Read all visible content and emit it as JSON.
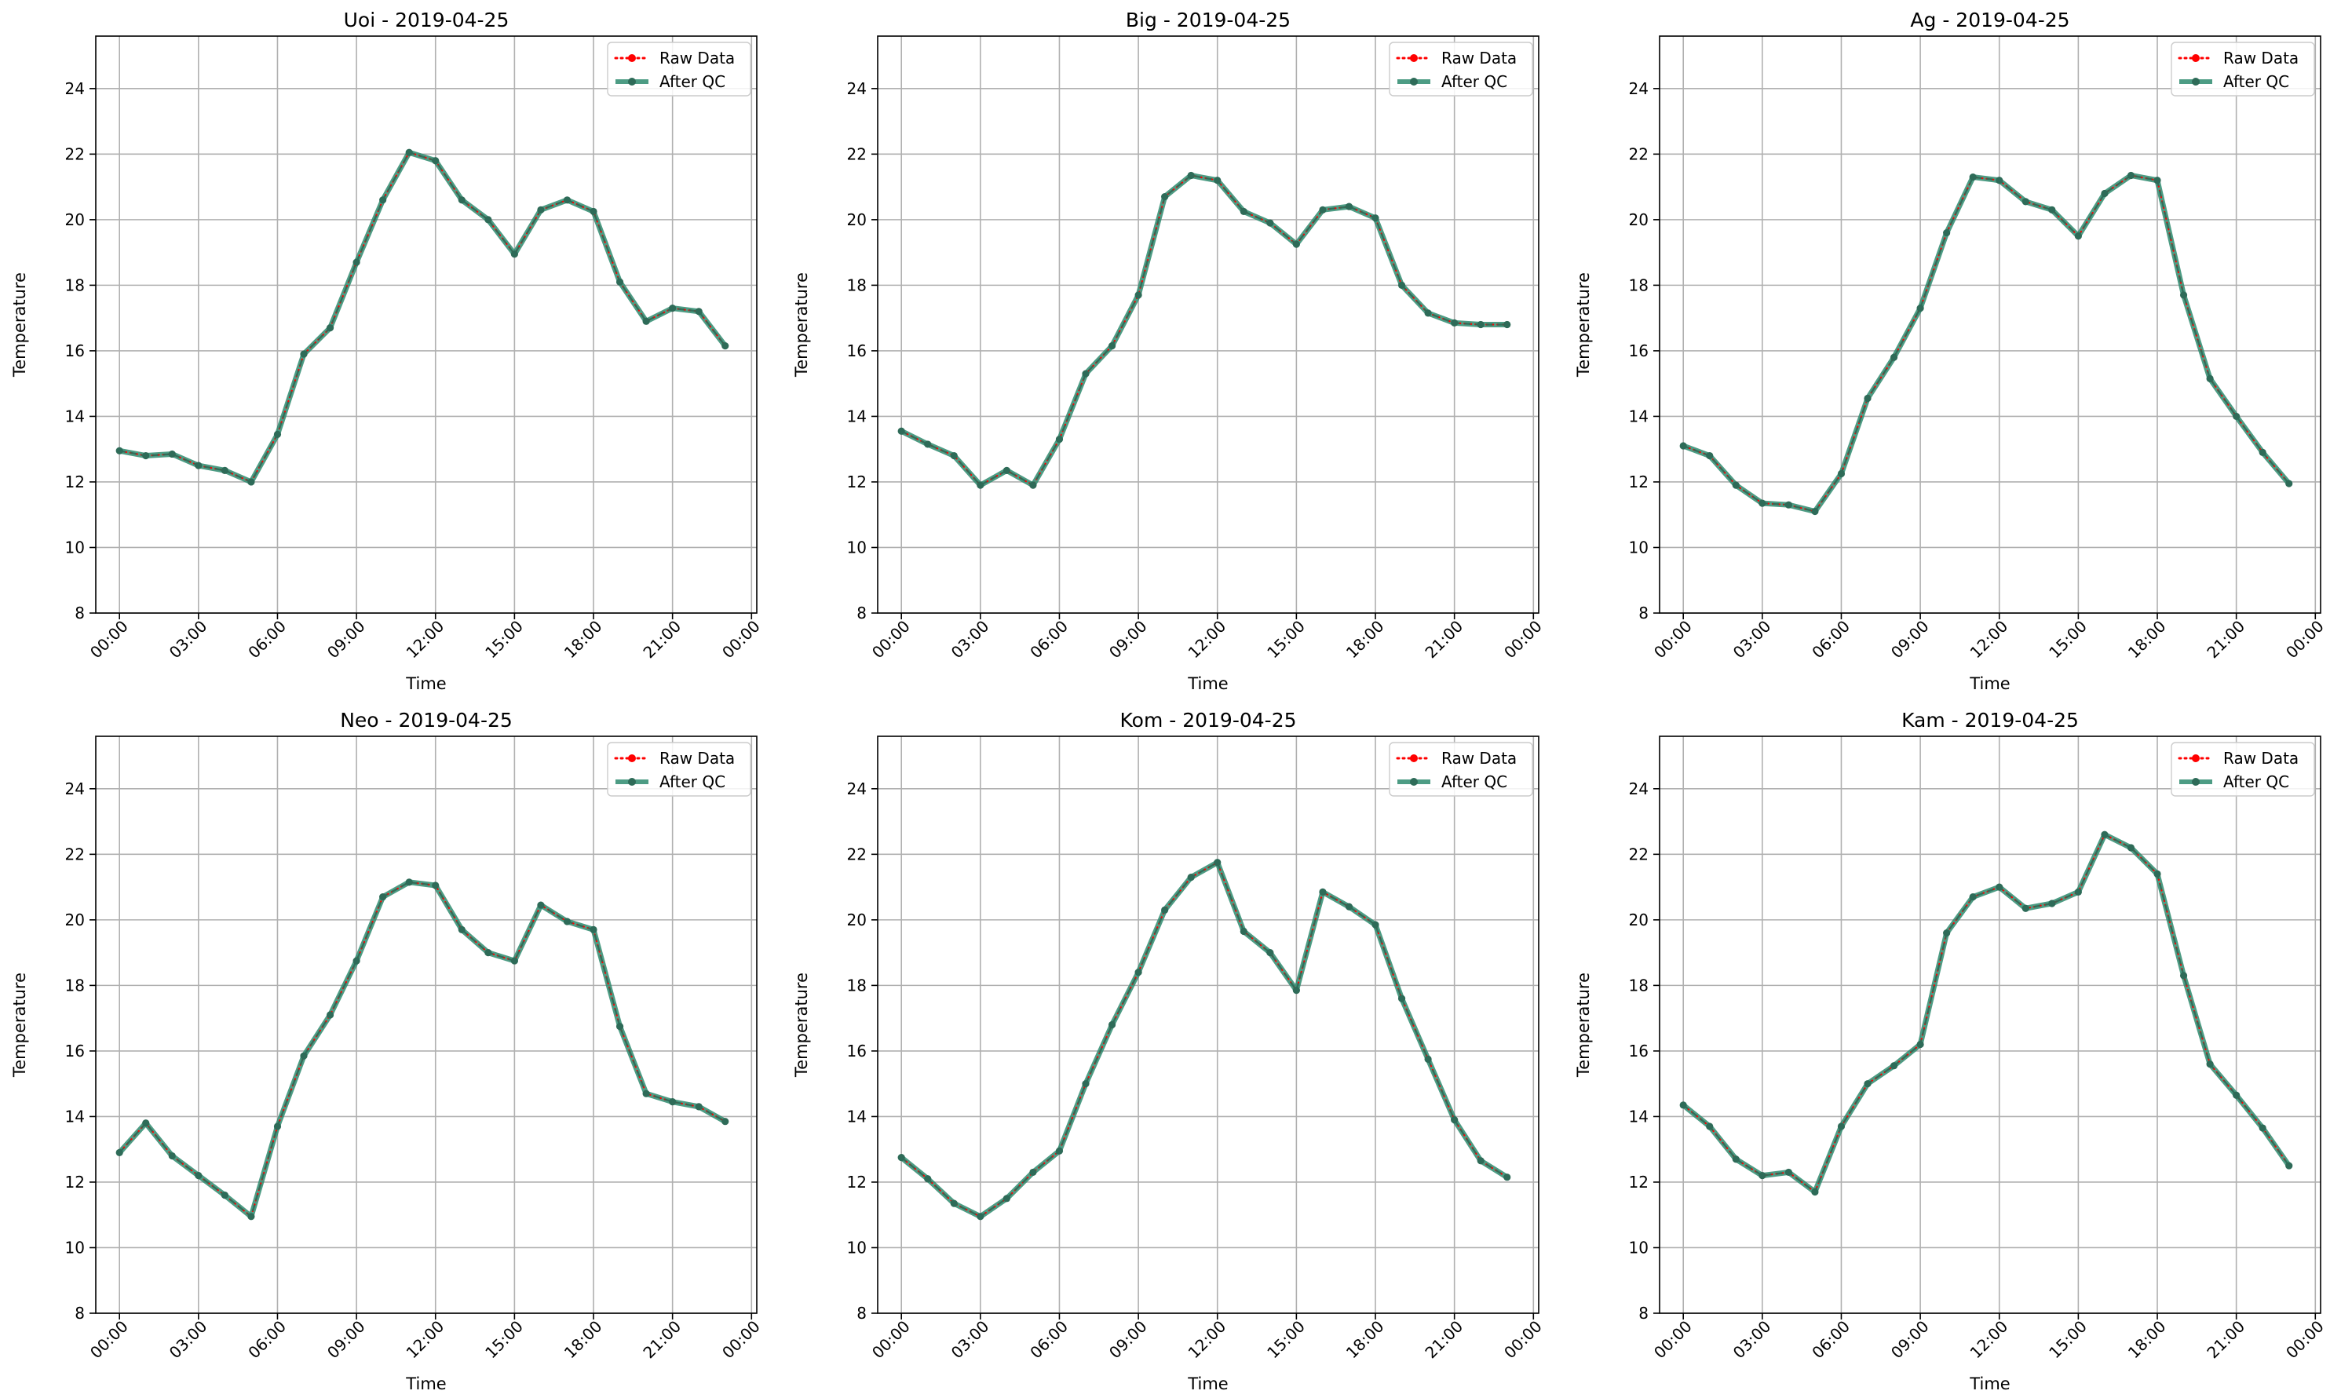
{
  "legend": {
    "raw_label": "Raw Data",
    "qc_label": "After QC"
  },
  "colors": {
    "raw": "#ff0000",
    "qc": "#2e8b6e",
    "qc_marker": "#2e6b58",
    "grid": "#b0b0b0",
    "axes": "#000000"
  },
  "axes": {
    "xlabel": "Time",
    "ylabel": "Temperature",
    "ylim": [
      8,
      25.6
    ],
    "yticks": [
      8,
      10,
      12,
      14,
      16,
      18,
      20,
      22,
      24
    ],
    "xlim_hours": [
      -0.9,
      24.2
    ],
    "xticks_hours": [
      0,
      3,
      6,
      9,
      12,
      15,
      18,
      21,
      24
    ],
    "xtick_labels": [
      "00:00",
      "03:00",
      "06:00",
      "09:00",
      "12:00",
      "15:00",
      "18:00",
      "21:00",
      "00:00"
    ],
    "grid": true,
    "legend_position": "top-right"
  },
  "chart_data": [
    {
      "type": "line",
      "title": "Uoi - 2019-04-25",
      "x_hours": [
        0,
        1,
        2,
        3,
        4,
        5,
        6,
        7,
        8,
        9,
        10,
        11,
        12,
        13,
        14,
        15,
        16,
        17,
        18,
        19,
        20,
        21,
        22,
        23
      ],
      "series": [
        {
          "name": "Raw Data",
          "values": [
            12.95,
            12.8,
            12.85,
            12.5,
            12.35,
            12.0,
            13.45,
            15.9,
            16.7,
            18.7,
            20.6,
            22.05,
            21.8,
            20.6,
            20.0,
            18.95,
            20.3,
            20.6,
            20.25,
            18.1,
            16.9,
            17.3,
            17.2,
            16.15
          ]
        },
        {
          "name": "After QC",
          "values": [
            12.95,
            12.8,
            12.85,
            12.5,
            12.35,
            12.0,
            13.45,
            15.9,
            16.7,
            18.7,
            20.6,
            22.05,
            21.8,
            20.6,
            20.0,
            18.95,
            20.3,
            20.6,
            20.25,
            18.1,
            16.9,
            17.3,
            17.2,
            16.15
          ]
        }
      ]
    },
    {
      "type": "line",
      "title": "Big - 2019-04-25",
      "x_hours": [
        0,
        1,
        2,
        3,
        4,
        5,
        6,
        7,
        8,
        9,
        10,
        11,
        12,
        13,
        14,
        15,
        16,
        17,
        18,
        19,
        20,
        21,
        22,
        23
      ],
      "series": [
        {
          "name": "Raw Data",
          "values": [
            13.55,
            13.15,
            12.8,
            11.9,
            12.35,
            11.9,
            13.3,
            15.3,
            16.15,
            17.7,
            20.7,
            21.35,
            21.2,
            20.25,
            19.9,
            19.25,
            20.3,
            20.4,
            20.05,
            18.0,
            17.15,
            16.85,
            16.8,
            16.8
          ]
        },
        {
          "name": "After QC",
          "values": [
            13.55,
            13.15,
            12.8,
            11.9,
            12.35,
            11.9,
            13.3,
            15.3,
            16.15,
            17.7,
            20.7,
            21.35,
            21.2,
            20.25,
            19.9,
            19.25,
            20.3,
            20.4,
            20.05,
            18.0,
            17.15,
            16.85,
            16.8,
            16.8
          ]
        }
      ]
    },
    {
      "type": "line",
      "title": "Ag - 2019-04-25",
      "x_hours": [
        0,
        1,
        2,
        3,
        4,
        5,
        6,
        7,
        8,
        9,
        10,
        11,
        12,
        13,
        14,
        15,
        16,
        17,
        18,
        19,
        20,
        21,
        22,
        23
      ],
      "series": [
        {
          "name": "Raw Data",
          "values": [
            13.1,
            12.8,
            11.9,
            11.35,
            11.3,
            11.1,
            12.25,
            14.55,
            15.8,
            17.3,
            19.6,
            21.3,
            21.2,
            20.55,
            20.3,
            19.5,
            20.8,
            21.35,
            21.2,
            17.7,
            15.15,
            14.0,
            12.9,
            11.95
          ]
        },
        {
          "name": "After QC",
          "values": [
            13.1,
            12.8,
            11.9,
            11.35,
            11.3,
            11.1,
            12.25,
            14.55,
            15.8,
            17.3,
            19.6,
            21.3,
            21.2,
            20.55,
            20.3,
            19.5,
            20.8,
            21.35,
            21.2,
            17.7,
            15.15,
            14.0,
            12.9,
            11.95
          ]
        }
      ]
    },
    {
      "type": "line",
      "title": "Neo - 2019-04-25",
      "x_hours": [
        0,
        1,
        2,
        3,
        4,
        5,
        6,
        7,
        8,
        9,
        10,
        11,
        12,
        13,
        14,
        15,
        16,
        17,
        18,
        19,
        20,
        21,
        22,
        23
      ],
      "series": [
        {
          "name": "Raw Data",
          "values": [
            12.9,
            13.8,
            12.8,
            12.2,
            11.6,
            10.95,
            13.7,
            15.85,
            17.1,
            18.75,
            20.7,
            21.15,
            21.05,
            19.7,
            19.0,
            18.75,
            20.45,
            19.95,
            19.7,
            16.75,
            14.7,
            14.45,
            14.3,
            13.85
          ]
        },
        {
          "name": "After QC",
          "values": [
            12.9,
            13.8,
            12.8,
            12.2,
            11.6,
            10.95,
            13.7,
            15.85,
            17.1,
            18.75,
            20.7,
            21.15,
            21.05,
            19.7,
            19.0,
            18.75,
            20.45,
            19.95,
            19.7,
            16.75,
            14.7,
            14.45,
            14.3,
            13.85
          ]
        }
      ]
    },
    {
      "type": "line",
      "title": "Kom - 2019-04-25",
      "x_hours": [
        0,
        1,
        2,
        3,
        4,
        5,
        6,
        7,
        8,
        9,
        10,
        11,
        12,
        13,
        14,
        15,
        16,
        17,
        18,
        19,
        20,
        21,
        22,
        23
      ],
      "series": [
        {
          "name": "Raw Data",
          "values": [
            12.75,
            12.1,
            11.35,
            10.95,
            11.5,
            12.3,
            12.95,
            15.0,
            16.8,
            18.4,
            20.3,
            21.3,
            21.75,
            19.65,
            19.0,
            17.85,
            20.85,
            20.4,
            19.85,
            17.6,
            15.75,
            13.9,
            12.65,
            12.15
          ]
        },
        {
          "name": "After QC",
          "values": [
            12.75,
            12.1,
            11.35,
            10.95,
            11.5,
            12.3,
            12.95,
            15.0,
            16.8,
            18.4,
            20.3,
            21.3,
            21.75,
            19.65,
            19.0,
            17.85,
            20.85,
            20.4,
            19.85,
            17.6,
            15.75,
            13.9,
            12.65,
            12.15
          ]
        }
      ]
    },
    {
      "type": "line",
      "title": "Kam - 2019-04-25",
      "x_hours": [
        0,
        1,
        2,
        3,
        4,
        5,
        6,
        7,
        8,
        9,
        10,
        11,
        12,
        13,
        14,
        15,
        16,
        17,
        18,
        19,
        20,
        21,
        22,
        23
      ],
      "series": [
        {
          "name": "Raw Data",
          "values": [
            14.35,
            13.7,
            12.7,
            12.2,
            12.3,
            11.7,
            13.7,
            15.0,
            15.55,
            16.2,
            19.6,
            20.7,
            21.0,
            20.35,
            20.5,
            20.85,
            22.6,
            22.2,
            21.4,
            18.3,
            15.6,
            14.65,
            13.65,
            12.5
          ]
        },
        {
          "name": "After QC",
          "values": [
            14.35,
            13.7,
            12.7,
            12.2,
            12.3,
            11.7,
            13.7,
            15.0,
            15.55,
            16.2,
            19.6,
            20.7,
            21.0,
            20.35,
            20.5,
            20.85,
            22.6,
            22.2,
            21.4,
            18.3,
            15.6,
            14.65,
            13.65,
            12.5
          ]
        }
      ]
    }
  ]
}
